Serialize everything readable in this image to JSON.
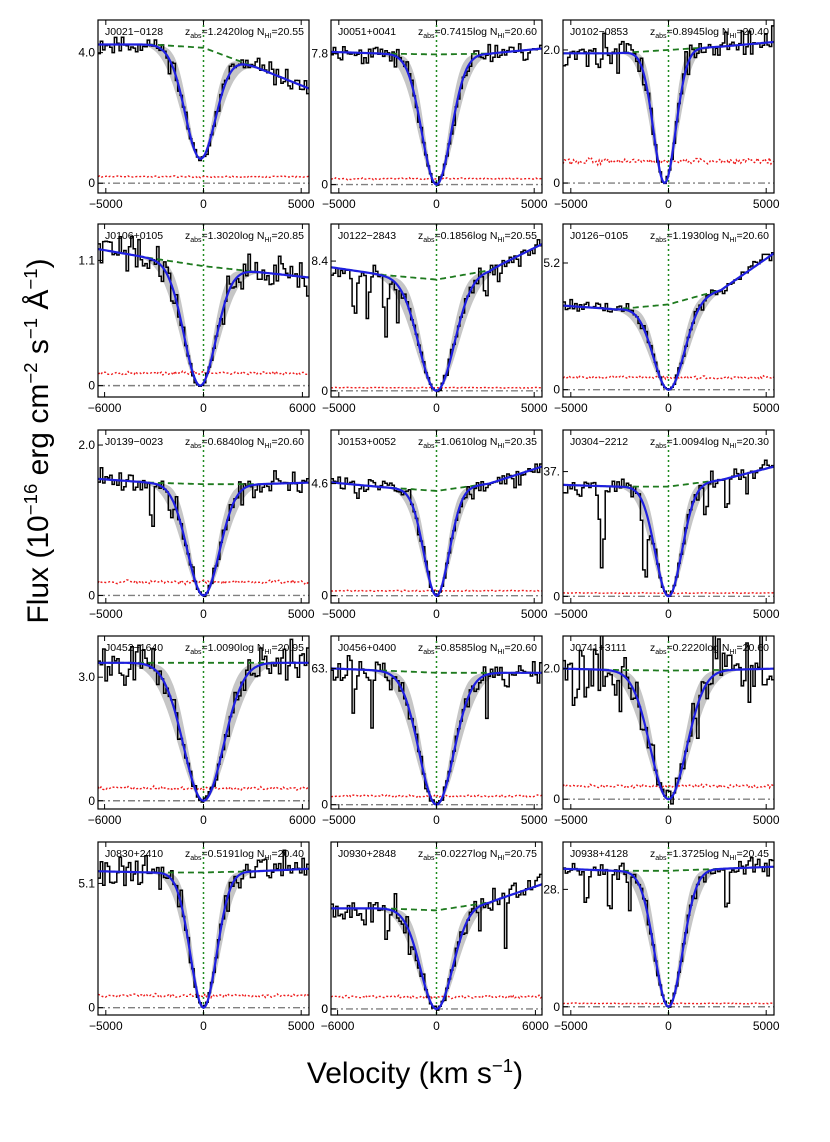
{
  "figure": {
    "ylabel_main": "Flux (10",
    "ylabel_exp1": "−16",
    "ylabel_mid1": " erg cm",
    "ylabel_exp2": "−2",
    "ylabel_mid2": " s",
    "ylabel_exp3": "−1",
    "ylabel_mid3": " Å",
    "ylabel_exp4": "−1",
    "ylabel_end": ")",
    "xlabel_main": "Velocity (km s",
    "xlabel_exp": "−1",
    "xlabel_end": ")"
  },
  "colors": {
    "data": "#000000",
    "fit": "#1f1fe0",
    "band": "#c6c6c6",
    "continuum": "#1e7a1e",
    "error": "#ee1b1b",
    "zero": "#808080",
    "center": "#1e8a1e"
  },
  "chart_data": [
    {
      "type": "line",
      "title": "J0021−0128",
      "z_abs": "1.2420",
      "log_nhi": "20.55",
      "xlim": [
        -5400,
        5400
      ],
      "xticks": [
        -5000,
        0,
        5000
      ],
      "ylim": [
        -0.3,
        5.0
      ],
      "ytick_label": "4.0",
      "ytick_value": 4.0,
      "cont": [
        4.25,
        4.25,
        4.15,
        3.55,
        2.9
      ],
      "depth": 0.82,
      "width": 1100,
      "noise": 0.22,
      "err": 0.2,
      "seed": 11,
      "offset": -150,
      "lines": []
    },
    {
      "type": "line",
      "title": "J0051+0041",
      "z_abs": "0.7415",
      "log_nhi": "20.60",
      "xlim": [
        -5400,
        5400
      ],
      "xticks": [
        -5000,
        0,
        5000
      ],
      "ylim": [
        -0.5,
        9.8
      ],
      "ytick_label": "7.8",
      "ytick_value": 7.8,
      "cont": [
        7.9,
        7.8,
        7.75,
        7.8,
        8.1
      ],
      "depth": 1.0,
      "width": 1050,
      "noise": 0.45,
      "err": 0.35,
      "seed": 23,
      "offset": 0,
      "lines": []
    },
    {
      "type": "line",
      "title": "J0102−0853",
      "z_abs": "0.8945",
      "log_nhi": "20.40",
      "xlim": [
        -5400,
        5400
      ],
      "xticks": [
        -5000,
        0,
        5000
      ],
      "ylim": [
        -0.15,
        2.45
      ],
      "ytick_label": "2.0",
      "ytick_value": 2.0,
      "cont": [
        1.95,
        1.95,
        2.0,
        2.05,
        2.12
      ],
      "depth": 1.0,
      "width": 800,
      "noise": 0.17,
      "err": 0.33,
      "seed": 37,
      "offset": -200,
      "lines": []
    },
    {
      "type": "line",
      "title": "J0106+0105",
      "z_abs": "1.3020",
      "log_nhi": "20.85",
      "xlim": [
        -6400,
        6400
      ],
      "xticks": [
        -6000,
        0,
        6000
      ],
      "ylim": [
        -0.1,
        1.42
      ],
      "ytick_label": "1.1",
      "ytick_value": 1.1,
      "cont": [
        1.2,
        1.12,
        1.05,
        1.0,
        0.95
      ],
      "depth": 1.0,
      "width": 1350,
      "noise": 0.12,
      "err": 0.11,
      "seed": 41,
      "offset": -200,
      "lines": []
    },
    {
      "type": "line",
      "title": "J0122−2843",
      "z_abs": "0.1856",
      "log_nhi": "20.55",
      "xlim": [
        -5400,
        5400
      ],
      "xticks": [
        -5000,
        0,
        5000
      ],
      "ylim": [
        -0.4,
        10.8
      ],
      "ytick_label": "8.4",
      "ytick_value": 8.4,
      "cont": [
        8.0,
        7.5,
        7.2,
        7.8,
        9.5
      ],
      "depth": 1.0,
      "width": 1250,
      "noise": 0.45,
      "err": 0.2,
      "seed": 53,
      "offset": 0,
      "lines": [
        [
          -4200,
          0.35,
          120
        ],
        [
          -3500,
          0.45,
          90
        ],
        [
          -2600,
          0.5,
          120
        ],
        [
          -2000,
          0.4,
          80
        ],
        [
          2500,
          0.2,
          100
        ],
        [
          3200,
          0.2,
          80
        ]
      ]
    },
    {
      "type": "line",
      "title": "J0126−0105",
      "z_abs": "1.1930",
      "log_nhi": "20.60",
      "xlim": [
        -5400,
        5400
      ],
      "xticks": [
        -5000,
        0,
        5000
      ],
      "ylim": [
        -0.3,
        6.8
      ],
      "ytick_label": "5.2",
      "ytick_value": 5.2,
      "cont": [
        3.45,
        3.3,
        3.5,
        4.1,
        5.6
      ],
      "depth": 1.0,
      "width": 1100,
      "noise": 0.22,
      "err": 0.5,
      "seed": 61,
      "offset": 0,
      "lines": []
    },
    {
      "type": "line",
      "title": "J0139−0023",
      "z_abs": "0.6840",
      "log_nhi": "20.60",
      "xlim": [
        -5400,
        5400
      ],
      "xticks": [
        -5000,
        0,
        5000
      ],
      "ylim": [
        -0.1,
        2.2
      ],
      "ytick_label": "2.0",
      "ytick_value": 2.0,
      "cont": [
        1.55,
        1.5,
        1.48,
        1.48,
        1.5
      ],
      "depth": 1.0,
      "width": 1150,
      "noise": 0.12,
      "err": 0.18,
      "seed": 71,
      "offset": 0,
      "lines": [
        [
          -2600,
          0.3,
          140
        ],
        [
          -1700,
          0.25,
          110
        ]
      ]
    },
    {
      "type": "line",
      "title": "J0153+0052",
      "z_abs": "1.0610",
      "log_nhi": "20.35",
      "xlim": [
        -5400,
        5400
      ],
      "xticks": [
        -5000,
        0,
        5000
      ],
      "ylim": [
        -0.3,
        6.8
      ],
      "ytick_label": "4.6",
      "ytick_value": 4.6,
      "cont": [
        4.65,
        4.45,
        4.3,
        4.6,
        5.3
      ],
      "depth": 1.0,
      "width": 900,
      "noise": 0.28,
      "err": 0.2,
      "seed": 83,
      "offset": 0,
      "lines": []
    },
    {
      "type": "line",
      "title": "J0304−2212",
      "z_abs": "1.0094",
      "log_nhi": "20.30",
      "xlim": [
        -5400,
        5400
      ],
      "xticks": [
        -5000,
        0,
        5000
      ],
      "ylim": [
        -2,
        50
      ],
      "ytick_label": "37.",
      "ytick_value": 37.5,
      "cont": [
        33.5,
        33.0,
        33.0,
        35.0,
        39.0
      ],
      "depth": 1.0,
      "width": 950,
      "noise": 1.7,
      "err": 1.0,
      "seed": 97,
      "offset": 0,
      "lines": [
        [
          -3400,
          0.75,
          140
        ],
        [
          -1200,
          0.85,
          160
        ],
        [
          1900,
          0.35,
          110
        ],
        [
          3000,
          0.3,
          100
        ],
        [
          4000,
          0.2,
          90
        ]
      ]
    },
    {
      "type": "line",
      "title": "J0452−1640",
      "z_abs": "1.0090",
      "log_nhi": "20.95",
      "xlim": [
        -6400,
        6400
      ],
      "xticks": [
        -6000,
        0,
        6000
      ],
      "ylim": [
        -0.2,
        4.0
      ],
      "ytick_label": "3.0",
      "ytick_value": 3.0,
      "cont": [
        3.35,
        3.35,
        3.35,
        3.35,
        3.35
      ],
      "depth": 1.0,
      "width": 1700,
      "noise": 0.35,
      "err": 0.3,
      "seed": 101,
      "offset": 0,
      "lines": []
    },
    {
      "type": "line",
      "title": "J0456+0400",
      "z_abs": "0.8585",
      "log_nhi": "20.60",
      "xlim": [
        -5400,
        5400
      ],
      "xticks": [
        -5000,
        0,
        5000
      ],
      "ylim": [
        -2,
        78
      ],
      "ytick_label": "63.",
      "ytick_value": 63,
      "cont": [
        63,
        62,
        61,
        61,
        61
      ],
      "depth": 1.0,
      "width": 1250,
      "noise": 4.5,
      "err": 4.0,
      "seed": 113,
      "offset": 0,
      "lines": [
        [
          -4200,
          0.35,
          100
        ],
        [
          -3300,
          0.4,
          90
        ],
        [
          2600,
          0.3,
          90
        ],
        [
          3600,
          0.2,
          80
        ]
      ]
    },
    {
      "type": "line",
      "title": "J0741+3111",
      "z_abs": "0.2220",
      "log_nhi": "20.60",
      "xlim": [
        -5400,
        5400
      ],
      "xticks": [
        -5000,
        0,
        5000
      ],
      "ylim": [
        -0.15,
        2.5
      ],
      "ytick_label": "2.0",
      "ytick_value": 2.0,
      "cont": [
        2.0,
        1.98,
        1.97,
        1.98,
        2.0
      ],
      "depth": 1.0,
      "width": 1300,
      "noise": 0.45,
      "err": 0.2,
      "seed": 127,
      "offset": 0,
      "lines": []
    },
    {
      "type": "line",
      "title": "J0830+2410",
      "z_abs": "0.5191",
      "log_nhi": "20.40",
      "xlim": [
        -5400,
        5400
      ],
      "xticks": [
        -5000,
        0,
        5000
      ],
      "ylim": [
        -0.3,
        6.8
      ],
      "ytick_label": "5.1",
      "ytick_value": 5.1,
      "cont": [
        5.6,
        5.55,
        5.55,
        5.6,
        5.7
      ],
      "depth": 1.0,
      "width": 950,
      "noise": 0.45,
      "err": 0.5,
      "seed": 131,
      "offset": 0,
      "lines": []
    },
    {
      "type": "line",
      "title": "J0930+2848",
      "z_abs": "0.0227",
      "log_nhi": "20.75",
      "xlim": [
        -6400,
        6400
      ],
      "xticks": [
        -6000,
        0,
        6000
      ],
      "ylim": [
        -0.03,
        0.83
      ],
      "ytick_label": "0",
      "ytick_value": 0,
      "cont": [
        0.5,
        0.5,
        0.49,
        0.53,
        0.62
      ],
      "depth": 1.0,
      "width": 1350,
      "noise": 0.05,
      "err": 0.06,
      "seed": 137,
      "offset": 0,
      "lines": [
        [
          -4400,
          0.5,
          90
        ],
        [
          -3000,
          0.5,
          100
        ],
        [
          -1600,
          0.45,
          80
        ],
        [
          2600,
          0.3,
          90
        ],
        [
          4200,
          0.4,
          80
        ]
      ]
    },
    {
      "type": "line",
      "title": "J0938+4128",
      "z_abs": "1.3725",
      "log_nhi": "20.45",
      "xlim": [
        -5400,
        5400
      ],
      "xticks": [
        -5000,
        0,
        5000
      ],
      "ylim": [
        -2,
        40
      ],
      "ytick_label": "28.",
      "ytick_value": 28.5,
      "cont": [
        33.5,
        33.0,
        33.0,
        33.5,
        34.0
      ],
      "depth": 1.0,
      "width": 1000,
      "noise": 1.5,
      "err": 0.8,
      "seed": 149,
      "offset": 0,
      "lines": [
        [
          -4200,
          0.35,
          100
        ],
        [
          -3000,
          0.3,
          110
        ],
        [
          -2000,
          0.2,
          90
        ],
        [
          3000,
          0.35,
          110
        ]
      ]
    }
  ]
}
